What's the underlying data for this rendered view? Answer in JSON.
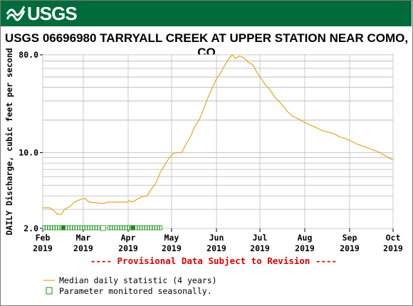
{
  "header": {
    "logo_text": "USGS",
    "title": "USGS 06696980 TARRYALL CREEK AT UPPER STATION NEAR COMO, CO"
  },
  "colors": {
    "banner": "#006c3b",
    "line": "#e8a520",
    "seasonal": "#1a8c1a"
  },
  "chart_data": {
    "type": "line",
    "y_scale": "log",
    "ylabel": "DAILY Discharge, cubic feet per second",
    "ylim": [
      2.0,
      80.0
    ],
    "y_ticks": [
      {
        "value": 2.0,
        "label": "2.0"
      },
      {
        "value": 10.0,
        "label": "10.0"
      },
      {
        "value": 80.0,
        "label": "80.0"
      }
    ],
    "xlim": [
      "2019-02-01",
      "2019-10-01"
    ],
    "x_ticks": [
      {
        "date": "2019-02-01",
        "month": "Feb",
        "year": "2019"
      },
      {
        "date": "2019-03-01",
        "month": "Mar",
        "year": "2019"
      },
      {
        "date": "2019-04-01",
        "month": "Apr",
        "year": "2019"
      },
      {
        "date": "2019-05-01",
        "month": "May",
        "year": "2019"
      },
      {
        "date": "2019-06-01",
        "month": "Jun",
        "year": "2019"
      },
      {
        "date": "2019-07-01",
        "month": "Jul",
        "year": "2019"
      },
      {
        "date": "2019-08-01",
        "month": "Aug",
        "year": "2019"
      },
      {
        "date": "2019-09-01",
        "month": "Sep",
        "year": "2019"
      },
      {
        "date": "2019-10-01",
        "month": "Oct",
        "year": "2019"
      }
    ],
    "series": [
      {
        "name": "Median daily statistic (4 years)",
        "points": [
          [
            "2019-02-01",
            3.1
          ],
          [
            "2019-02-06",
            3.1
          ],
          [
            "2019-02-09",
            2.9
          ],
          [
            "2019-02-11",
            2.7
          ],
          [
            "2019-02-14",
            2.7
          ],
          [
            "2019-02-16",
            3.0
          ],
          [
            "2019-02-20",
            3.2
          ],
          [
            "2019-02-23",
            3.5
          ],
          [
            "2019-02-27",
            3.7
          ],
          [
            "2019-03-02",
            3.8
          ],
          [
            "2019-03-05",
            3.5
          ],
          [
            "2019-03-15",
            3.4
          ],
          [
            "2019-03-18",
            3.5
          ],
          [
            "2019-03-31",
            3.5
          ],
          [
            "2019-04-02",
            3.6
          ],
          [
            "2019-04-04",
            3.5
          ],
          [
            "2019-04-07",
            3.7
          ],
          [
            "2019-04-10",
            3.9
          ],
          [
            "2019-04-14",
            4.0
          ],
          [
            "2019-04-17",
            4.6
          ],
          [
            "2019-04-20",
            5.2
          ],
          [
            "2019-04-23",
            6.5
          ],
          [
            "2019-04-26",
            7.6
          ],
          [
            "2019-04-29",
            8.8
          ],
          [
            "2019-05-02",
            9.8
          ],
          [
            "2019-05-05",
            10.0
          ],
          [
            "2019-05-08",
            10.0
          ],
          [
            "2019-05-11",
            12.0
          ],
          [
            "2019-05-14",
            14.0
          ],
          [
            "2019-05-17",
            17.5
          ],
          [
            "2019-05-20",
            20.0
          ],
          [
            "2019-05-23",
            25.0
          ],
          [
            "2019-05-26",
            32.0
          ],
          [
            "2019-05-29",
            39.0
          ],
          [
            "2019-06-01",
            48.0
          ],
          [
            "2019-06-04",
            55.0
          ],
          [
            "2019-06-07",
            65.0
          ],
          [
            "2019-06-10",
            75.0
          ],
          [
            "2019-06-12",
            80.0
          ],
          [
            "2019-06-14",
            74.0
          ],
          [
            "2019-06-17",
            78.0
          ],
          [
            "2019-06-20",
            75.0
          ],
          [
            "2019-06-23",
            68.0
          ],
          [
            "2019-06-26",
            65.0
          ],
          [
            "2019-06-29",
            55.0
          ],
          [
            "2019-07-02",
            48.0
          ],
          [
            "2019-07-05",
            42.0
          ],
          [
            "2019-07-08",
            38.0
          ],
          [
            "2019-07-11",
            33.0
          ],
          [
            "2019-07-14",
            30.0
          ],
          [
            "2019-07-17",
            27.0
          ],
          [
            "2019-07-20",
            24.0
          ],
          [
            "2019-07-23",
            22.0
          ],
          [
            "2019-07-26",
            21.0
          ],
          [
            "2019-07-29",
            20.0
          ],
          [
            "2019-08-01",
            19.0
          ],
          [
            "2019-08-05",
            18.0
          ],
          [
            "2019-08-09",
            17.0
          ],
          [
            "2019-08-13",
            16.0
          ],
          [
            "2019-08-17",
            15.5
          ],
          [
            "2019-08-21",
            15.0
          ],
          [
            "2019-08-25",
            14.0
          ],
          [
            "2019-08-29",
            13.5
          ],
          [
            "2019-09-02",
            12.8
          ],
          [
            "2019-09-06",
            12.0
          ],
          [
            "2019-09-10",
            11.5
          ],
          [
            "2019-09-14",
            11.0
          ],
          [
            "2019-09-18",
            10.5
          ],
          [
            "2019-09-22",
            10.0
          ],
          [
            "2019-09-26",
            9.3
          ],
          [
            "2019-09-30",
            8.7
          ],
          [
            "2019-10-01",
            8.6
          ]
        ]
      }
    ],
    "seasonal_monitoring_range": [
      "2019-02-01",
      "2019-04-23"
    ],
    "provisional_note": "---- Provisional Data Subject to Revision ----",
    "legend": [
      {
        "label": "Median daily statistic (4 years)",
        "symbol": "line"
      },
      {
        "label": "Parameter monitored seasonally.",
        "symbol": "square"
      }
    ],
    "grid": true,
    "legend_placement": "bottom-left"
  }
}
